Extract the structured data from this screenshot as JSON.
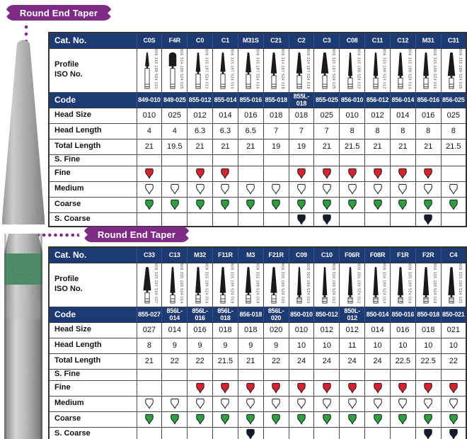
{
  "colors": {
    "navy": "#1e3a72",
    "purple": "#7d2b85",
    "grid": "#4a4a4a",
    "band_green": "#2e7d4f",
    "grit_fine": "#d8232a",
    "grit_medium": "#ffffff",
    "grit_coarse": "#2f9e41",
    "grit_s_coarse": "#141c2e",
    "grit_s_fine": "#f0a500"
  },
  "row_labels": {
    "cat_no": "Cat. No.",
    "profile": "Profile\nISO No.",
    "code": "Code",
    "head_size": "Head Size",
    "head_length": "Head Length",
    "total_length": "Total Length",
    "s_fine": "S. Fine",
    "fine": "Fine",
    "medium": "Medium",
    "coarse": "Coarse",
    "s_coarse": "S. Coarse"
  },
  "sections": [
    {
      "title": "Round End Taper",
      "columns": [
        {
          "cat_no": "C0S",
          "iso": "806 315 198 524 010",
          "code": "849-010",
          "head_size": "010",
          "head_length": "4",
          "total_length": "21",
          "shape": "taper",
          "grits": {
            "s_fine": false,
            "fine": true,
            "medium": true,
            "coarse": true,
            "s_coarse": false
          }
        },
        {
          "cat_no": "F4R",
          "iso": "806 314 198 524 025",
          "code": "849-025",
          "head_size": "025",
          "head_length": "4",
          "total_length": "19.5",
          "shape": "bullet",
          "grits": {
            "s_fine": false,
            "fine": false,
            "medium": true,
            "coarse": true,
            "s_coarse": false
          }
        },
        {
          "cat_no": "C0",
          "iso": "806 315 197 524 012",
          "code": "855-012",
          "head_size": "012",
          "head_length": "6.3",
          "total_length": "21",
          "shape": "taper",
          "grits": {
            "s_fine": false,
            "fine": true,
            "medium": true,
            "coarse": true,
            "s_coarse": false
          }
        },
        {
          "cat_no": "C1",
          "iso": "806 315 197 524 014",
          "code": "855-014",
          "head_size": "014",
          "head_length": "6.3",
          "total_length": "21",
          "shape": "taper",
          "grits": {
            "s_fine": false,
            "fine": true,
            "medium": true,
            "coarse": true,
            "s_coarse": false
          }
        },
        {
          "cat_no": "M31S",
          "iso": "806 315 197 524 016",
          "code": "855-016",
          "head_size": "016",
          "head_length": "6.5",
          "total_length": "21",
          "shape": "taper",
          "grits": {
            "s_fine": false,
            "fine": false,
            "medium": true,
            "coarse": true,
            "s_coarse": false
          }
        },
        {
          "cat_no": "C21",
          "iso": "806 314 197 524 018",
          "code": "855-018",
          "head_size": "018",
          "head_length": "7",
          "total_length": "19",
          "shape": "taper",
          "grits": {
            "s_fine": false,
            "fine": false,
            "medium": true,
            "coarse": true,
            "s_coarse": false
          }
        },
        {
          "cat_no": "C2",
          "iso": "806 314 197 524 018",
          "code": "855L-018",
          "head_size": "018",
          "head_length": "7",
          "total_length": "19",
          "shape": "taper",
          "grits": {
            "s_fine": false,
            "fine": true,
            "medium": true,
            "coarse": true,
            "s_coarse": true
          }
        },
        {
          "cat_no": "C3",
          "iso": "806 315 197 524 025",
          "code": "855-025",
          "head_size": "025",
          "head_length": "7",
          "total_length": "21",
          "shape": "taper",
          "grits": {
            "s_fine": false,
            "fine": true,
            "medium": true,
            "coarse": true,
            "s_coarse": true
          }
        },
        {
          "cat_no": "C08",
          "iso": "806 315 198 524 010",
          "code": "856-010",
          "head_size": "010",
          "head_length": "8",
          "total_length": "21.5",
          "shape": "taper",
          "grits": {
            "s_fine": false,
            "fine": true,
            "medium": true,
            "coarse": true,
            "s_coarse": false
          }
        },
        {
          "cat_no": "C11",
          "iso": "806 315 198 524 012",
          "code": "856-012",
          "head_size": "012",
          "head_length": "8",
          "total_length": "21",
          "shape": "taper",
          "grits": {
            "s_fine": false,
            "fine": true,
            "medium": true,
            "coarse": true,
            "s_coarse": false
          }
        },
        {
          "cat_no": "C12",
          "iso": "806 315 198 524 014",
          "code": "856-014",
          "head_size": "014",
          "head_length": "8",
          "total_length": "21",
          "shape": "taper",
          "grits": {
            "s_fine": false,
            "fine": true,
            "medium": true,
            "coarse": true,
            "s_coarse": false
          }
        },
        {
          "cat_no": "M31",
          "iso": "806 315 198 524 016",
          "code": "856-016",
          "head_size": "016",
          "head_length": "8",
          "total_length": "21",
          "shape": "taper",
          "grits": {
            "s_fine": false,
            "fine": true,
            "medium": true,
            "coarse": true,
            "s_coarse": true
          }
        },
        {
          "cat_no": "C31",
          "iso": "806 315 198 524 025",
          "code": "856-025",
          "head_size": "025",
          "head_length": "8",
          "total_length": "21.5",
          "shape": "taper",
          "grits": {
            "s_fine": false,
            "fine": false,
            "medium": true,
            "coarse": true,
            "s_coarse": false
          }
        }
      ]
    },
    {
      "title": "Round End Taper",
      "columns": [
        {
          "cat_no": "C33",
          "iso": "806 315 197 524 027",
          "code": "855-027",
          "head_size": "027",
          "head_length": "8",
          "total_length": "21",
          "shape": "taper",
          "grits": {
            "s_fine": false,
            "fine": false,
            "medium": true,
            "coarse": true,
            "s_coarse": false
          }
        },
        {
          "cat_no": "C13",
          "iso": "806 315 199 524 014",
          "code": "856L-014",
          "head_size": "014",
          "head_length": "9",
          "total_length": "22",
          "shape": "taper",
          "grits": {
            "s_fine": false,
            "fine": false,
            "medium": true,
            "coarse": true,
            "s_coarse": false
          }
        },
        {
          "cat_no": "M32",
          "iso": "806 315 199 524 016",
          "code": "856L-016",
          "head_size": "016",
          "head_length": "9",
          "total_length": "22",
          "shape": "taper",
          "grits": {
            "s_fine": false,
            "fine": true,
            "medium": true,
            "coarse": true,
            "s_coarse": false
          }
        },
        {
          "cat_no": "F11R",
          "iso": "806 315 199 524 018",
          "code": "856L-018",
          "head_size": "018",
          "head_length": "9",
          "total_length": "21.5",
          "shape": "taper",
          "grits": {
            "s_fine": false,
            "fine": true,
            "medium": true,
            "coarse": true,
            "s_coarse": false
          }
        },
        {
          "cat_no": "M3",
          "iso": "806 315 198 524 018",
          "code": "856-018",
          "head_size": "018",
          "head_length": "9",
          "total_length": "21",
          "shape": "taper",
          "grits": {
            "s_fine": false,
            "fine": true,
            "medium": true,
            "coarse": true,
            "s_coarse": true
          }
        },
        {
          "cat_no": "F21R",
          "iso": "806 315 199 524 020",
          "code": "856L-020",
          "head_size": "020",
          "head_length": "9",
          "total_length": "22",
          "shape": "taper",
          "grits": {
            "s_fine": false,
            "fine": true,
            "medium": true,
            "coarse": true,
            "s_coarse": false
          }
        },
        {
          "cat_no": "C09",
          "iso": "806 316 199 524 010",
          "code": "850-010",
          "head_size": "010",
          "head_length": "10",
          "total_length": "24",
          "shape": "taper",
          "grits": {
            "s_fine": false,
            "fine": true,
            "medium": true,
            "coarse": true,
            "s_coarse": false
          }
        },
        {
          "cat_no": "C10",
          "iso": "806 316 199 524 012",
          "code": "850-012",
          "head_size": "012",
          "head_length": "10",
          "total_length": "24",
          "shape": "taper",
          "grits": {
            "s_fine": false,
            "fine": true,
            "medium": true,
            "coarse": true,
            "s_coarse": false
          }
        },
        {
          "cat_no": "F06R",
          "iso": "806 316 199 524 012",
          "code": "850L-012",
          "head_size": "012",
          "head_length": "11",
          "total_length": "24",
          "shape": "taper",
          "grits": {
            "s_fine": false,
            "fine": true,
            "medium": true,
            "coarse": true,
            "s_coarse": false
          }
        },
        {
          "cat_no": "F08R",
          "iso": "806 316 199 524 014",
          "code": "850-014",
          "head_size": "014",
          "head_length": "10",
          "total_length": "24",
          "shape": "taper",
          "grits": {
            "s_fine": false,
            "fine": true,
            "medium": true,
            "coarse": true,
            "s_coarse": false
          }
        },
        {
          "cat_no": "F1R",
          "iso": "806 315 199 524 016",
          "code": "850-016",
          "head_size": "016",
          "head_length": "10",
          "total_length": "22.5",
          "shape": "taper",
          "grits": {
            "s_fine": false,
            "fine": true,
            "medium": true,
            "coarse": true,
            "s_coarse": false
          }
        },
        {
          "cat_no": "F2R",
          "iso": "806 315 199 524 018",
          "code": "850-018",
          "head_size": "018",
          "head_length": "10",
          "total_length": "22.5",
          "shape": "taper",
          "grits": {
            "s_fine": false,
            "fine": true,
            "medium": true,
            "coarse": true,
            "s_coarse": true
          }
        },
        {
          "cat_no": "C4",
          "iso": "806 315 199 524 021",
          "code": "850-021",
          "head_size": "021",
          "head_length": "10",
          "total_length": "22",
          "shape": "taper",
          "grits": {
            "s_fine": false,
            "fine": true,
            "medium": true,
            "coarse": true,
            "s_coarse": true
          }
        }
      ]
    }
  ]
}
